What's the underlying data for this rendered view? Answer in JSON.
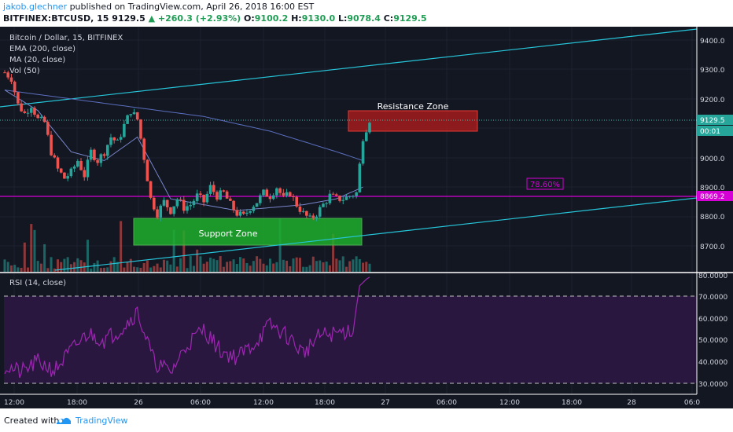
{
  "header": {
    "author": "jakob.glechner",
    "published_text": "published on TradingView.com, April 26, 2018 16:00 EST",
    "symbol": "BITFINEX:BTCUSD, 15",
    "last": "9129.5",
    "change": "+260.3 (+2.93%)",
    "o_label": "O:",
    "o": "9100.2",
    "h_label": "H:",
    "h": "9130.0",
    "l_label": "L:",
    "l": "9078.4",
    "c_label": "C:",
    "c": "9129.5"
  },
  "legend": {
    "title": "Bitcoin / Dollar, 15, BITFINEX",
    "ema": "EMA (200, close)",
    "ma": "MA (20, close)",
    "vol": "Vol (50)",
    "rsi": "RSI (14, close)"
  },
  "annotations": {
    "resistance": "Resistance Zone",
    "support": "Support Zone",
    "fib": "78.60%"
  },
  "price_axis": {
    "ticks": [
      "9400.0",
      "9300.0",
      "9200.0",
      "9000.0",
      "8900.0",
      "8800.0",
      "8700.0"
    ],
    "last_price": "9129.5",
    "countdown": "00:01",
    "line_price": "8869.2"
  },
  "rsi_axis": {
    "ticks": [
      "80.0000",
      "70.0000",
      "60.0000",
      "50.0000",
      "40.0000",
      "30.0000"
    ]
  },
  "time_axis": {
    "ticks": [
      "12:00",
      "18:00",
      "26",
      "06:00",
      "12:00",
      "18:00",
      "27",
      "06:00",
      "12:00",
      "18:00",
      "28",
      "06:0"
    ]
  },
  "footer": {
    "created": "Created with",
    "brand": "TradingView"
  },
  "colors": {
    "background": "#131722",
    "up": "#26a69a",
    "down": "#ef5350",
    "trendline": "#26c6da",
    "ema": "#5b6fbf",
    "ma": "#5f7bd1",
    "rsi_line": "#9c27b0",
    "rsi_band": "#2a1740",
    "resistance_zone": "#b71c1c",
    "support_zone": "#1fae2b",
    "fib_line": "#d500d5"
  },
  "chart_data": {
    "type": "candlestick",
    "title": "Bitcoin / Dollar, 15, BITFINEX",
    "ylim": [
      8620,
      9460
    ],
    "candles_close_path": [
      [
        0,
        9290
      ],
      [
        4,
        9270
      ],
      [
        8,
        9180
      ],
      [
        12,
        9150
      ],
      [
        16,
        9180
      ],
      [
        20,
        9130
      ],
      [
        24,
        9120
      ],
      [
        28,
        9020
      ],
      [
        32,
        8960
      ],
      [
        36,
        8930
      ],
      [
        40,
        8950
      ],
      [
        44,
        8990
      ],
      [
        48,
        8940
      ],
      [
        52,
        9020
      ],
      [
        56,
        8990
      ],
      [
        60,
        9020
      ],
      [
        64,
        9070
      ],
      [
        68,
        9050
      ],
      [
        72,
        9110
      ],
      [
        76,
        9160
      ],
      [
        80,
        9130
      ],
      [
        84,
        9000
      ],
      [
        88,
        8860
      ],
      [
        92,
        8810
      ],
      [
        96,
        8850
      ],
      [
        100,
        8820
      ],
      [
        104,
        8860
      ],
      [
        108,
        8830
      ],
      [
        112,
        8840
      ],
      [
        116,
        8870
      ],
      [
        120,
        8850
      ],
      [
        124,
        8900
      ],
      [
        128,
        8870
      ],
      [
        132,
        8880
      ],
      [
        136,
        8840
      ],
      [
        140,
        8810
      ],
      [
        144,
        8800
      ],
      [
        148,
        8830
      ],
      [
        152,
        8850
      ],
      [
        156,
        8880
      ],
      [
        160,
        8870
      ],
      [
        164,
        8900
      ],
      [
        168,
        8860
      ],
      [
        172,
        8880
      ],
      [
        176,
        8840
      ],
      [
        180,
        8810
      ],
      [
        184,
        8790
      ],
      [
        188,
        8810
      ],
      [
        192,
        8840
      ],
      [
        196,
        8870
      ],
      [
        200,
        8860
      ],
      [
        204,
        8860
      ],
      [
        208,
        8870
      ],
      [
        212,
        8880
      ],
      [
        216,
        9070
      ],
      [
        220,
        9130
      ]
    ],
    "ema_200": [
      [
        0,
        9230
      ],
      [
        40,
        9200
      ],
      [
        80,
        9170
      ],
      [
        120,
        9140
      ],
      [
        160,
        9090
      ],
      [
        200,
        9020
      ],
      [
        216,
        8990
      ]
    ],
    "ma_20": [
      [
        0,
        9230
      ],
      [
        20,
        9160
      ],
      [
        40,
        9020
      ],
      [
        60,
        8990
      ],
      [
        80,
        9070
      ],
      [
        100,
        8860
      ],
      [
        140,
        8820
      ],
      [
        180,
        8840
      ],
      [
        200,
        8860
      ],
      [
        216,
        8900
      ]
    ],
    "trendlines": [
      {
        "from": [
          0,
          9210
        ],
        "to": [
          400,
          9450
        ]
      },
      {
        "from": [
          0,
          8620
        ],
        "to": [
          400,
          8860
        ]
      }
    ],
    "horizontal_line": 8869.2,
    "fib_label": "78.60%",
    "resistance_zone": {
      "x": [
        202,
        278
      ],
      "y": [
        9100,
        9160
      ]
    },
    "support_zone": {
      "x": [
        78,
        212
      ],
      "y": [
        8710,
        8800
      ]
    },
    "rsi": {
      "ylim": [
        25,
        82
      ],
      "bands": [
        30,
        70
      ],
      "values": [
        [
          0,
          38
        ],
        [
          10,
          35
        ],
        [
          20,
          40
        ],
        [
          30,
          36
        ],
        [
          40,
          45
        ],
        [
          50,
          53
        ],
        [
          60,
          50
        ],
        [
          70,
          55
        ],
        [
          80,
          63
        ],
        [
          90,
          40
        ],
        [
          100,
          35
        ],
        [
          110,
          48
        ],
        [
          120,
          55
        ],
        [
          130,
          45
        ],
        [
          140,
          42
        ],
        [
          150,
          48
        ],
        [
          160,
          57
        ],
        [
          170,
          52
        ],
        [
          180,
          44
        ],
        [
          190,
          52
        ],
        [
          200,
          53
        ],
        [
          210,
          55
        ],
        [
          214,
          75
        ],
        [
          218,
          78
        ],
        [
          220,
          79
        ]
      ]
    },
    "time_ticks": [
      "12:00",
      "18:00",
      "26",
      "06:00",
      "12:00",
      "18:00",
      "27",
      "06:00",
      "12:00",
      "18:00",
      "28",
      "06:0"
    ]
  }
}
